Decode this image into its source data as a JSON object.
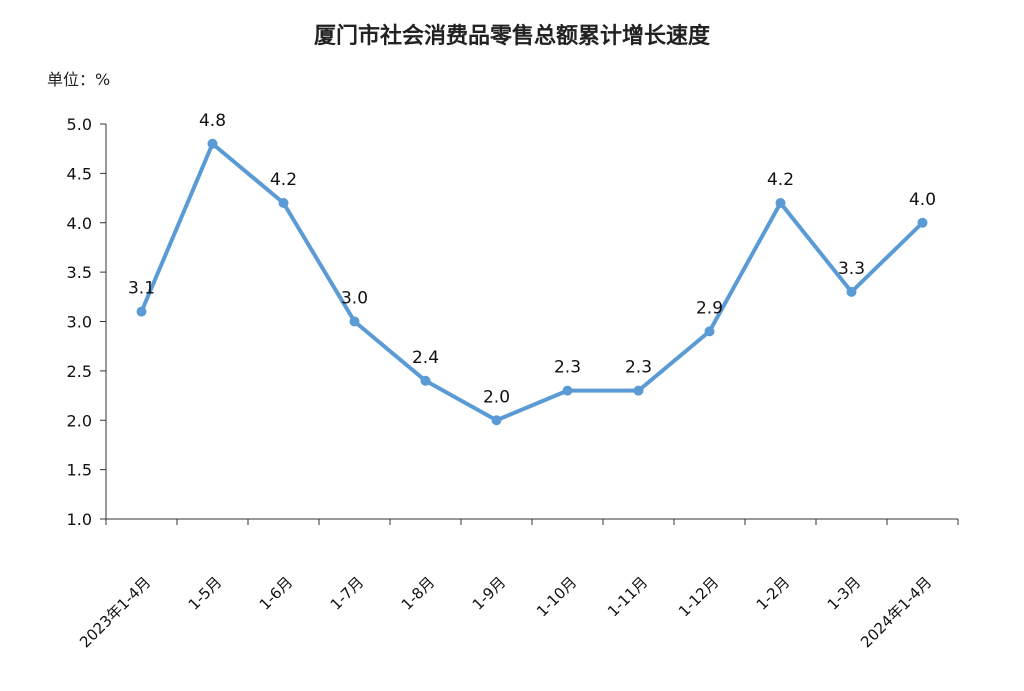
{
  "chart_data": {
    "type": "line",
    "title": "厦门市社会消费品零售总额累计增长速度",
    "unit_label": "单位：%",
    "categories": [
      "2023年1-4月",
      "1-5月",
      "1-6月",
      "1-7月",
      "1-8月",
      "1-9月",
      "1-10月",
      "1-11月",
      "1-12月",
      "1-2月",
      "1-3月",
      "2024年1-4月"
    ],
    "values": [
      3.1,
      4.8,
      4.2,
      3.0,
      2.4,
      2.0,
      2.3,
      2.3,
      2.9,
      4.2,
      3.3,
      4.0
    ],
    "data_labels": [
      "3.1",
      "4.8",
      "4.2",
      "3.0",
      "2.4",
      "2.0",
      "2.3",
      "2.3",
      "2.9",
      "4.2",
      "3.3",
      "4.0"
    ],
    "y_ticks": [
      "1.0",
      "1.5",
      "2.0",
      "2.5",
      "3.0",
      "3.5",
      "4.0",
      "4.5",
      "5.0"
    ],
    "ylim": [
      1.0,
      5.0
    ],
    "grid": false,
    "legend": "none",
    "line_color": "#5b9bd5"
  }
}
